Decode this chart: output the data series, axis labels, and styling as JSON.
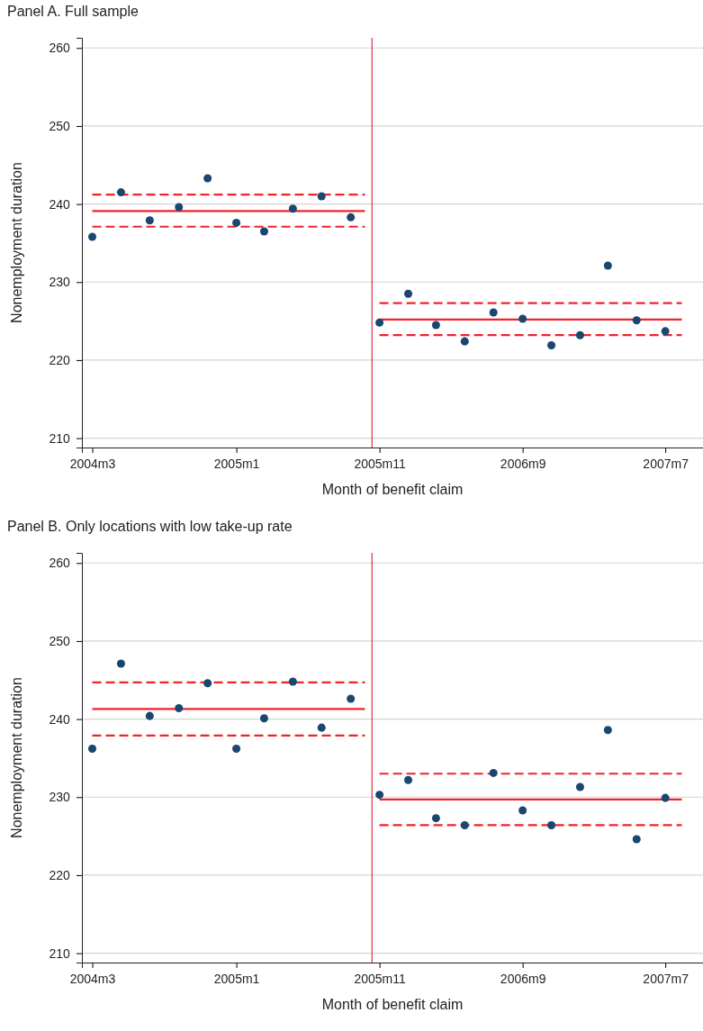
{
  "chart_data": [
    {
      "type": "scatter",
      "title": "Panel A. Full sample",
      "xlabel": "Month of benefit claim",
      "ylabel": "Nonemployment duration",
      "xlim": [
        "2004-02-08",
        "2007-09-19"
      ],
      "ylim": [
        208.8,
        261.3
      ],
      "xticks": [
        {
          "value": "2004-03",
          "label": "2004m3"
        },
        {
          "value": "2005-01",
          "label": "2005m1"
        },
        {
          "value": "2005-11",
          "label": "2005m11"
        },
        {
          "value": "2006-09",
          "label": "2006m9"
        },
        {
          "value": "2007-07",
          "label": "2007m7"
        }
      ],
      "yticks": [
        210,
        220,
        230,
        240,
        250,
        260
      ],
      "grid": "y",
      "ref_lines": [
        {
          "axis": "x",
          "value": "2005-10-16",
          "color": "#c8102e"
        }
      ],
      "series": [
        {
          "color": "#1a476f",
          "marker": "circle",
          "x": [
            "2004-03",
            "2004-05",
            "2004-07",
            "2004-09",
            "2004-11",
            "2005-01",
            "2005-03",
            "2005-05",
            "2005-07",
            "2005-09",
            "2005-11",
            "2006-01",
            "2006-03",
            "2006-05",
            "2006-07",
            "2006-09",
            "2006-11",
            "2007-01",
            "2007-03",
            "2007-05",
            "2007-07"
          ],
          "values": [
            235.8,
            241.5,
            237.9,
            239.6,
            243.3,
            237.6,
            236.5,
            239.4,
            241.0,
            238.3,
            224.8,
            228.5,
            224.5,
            222.4,
            226.1,
            225.3,
            221.9,
            223.2,
            232.1,
            225.1,
            223.7
          ]
        },
        {
          "type": "line",
          "color": "#f0232b",
          "line_style": "solid",
          "x": [
            "2004-03",
            "2005-10-01"
          ],
          "values": [
            239.1,
            239.1
          ]
        },
        {
          "type": "line",
          "color": "#f0232b",
          "line_style": "dashed",
          "x": [
            "2004-03",
            "2005-10-01"
          ],
          "values": [
            241.2,
            241.2
          ]
        },
        {
          "type": "line",
          "color": "#f0232b",
          "line_style": "dashed",
          "x": [
            "2004-03",
            "2005-10-01"
          ],
          "values": [
            237.1,
            237.1
          ]
        },
        {
          "type": "line",
          "color": "#f0232b",
          "line_style": "solid",
          "x": [
            "2005-11",
            "2007-08-05"
          ],
          "values": [
            225.2,
            225.2
          ]
        },
        {
          "type": "line",
          "color": "#f0232b",
          "line_style": "dashed",
          "x": [
            "2005-11",
            "2007-08-05"
          ],
          "values": [
            227.3,
            227.3
          ]
        },
        {
          "type": "line",
          "color": "#f0232b",
          "line_style": "dashed",
          "x": [
            "2005-11",
            "2007-08-05"
          ],
          "values": [
            223.2,
            223.2
          ]
        }
      ]
    },
    {
      "type": "scatter",
      "title": "Panel B. Only locations with low take-up rate",
      "xlabel": "Month of benefit claim",
      "ylabel": "Nonemployment duration",
      "xlim": [
        "2004-02-08",
        "2007-09-19"
      ],
      "ylim": [
        208.8,
        261.3
      ],
      "xticks": [
        {
          "value": "2004-03",
          "label": "2004m3"
        },
        {
          "value": "2005-01",
          "label": "2005m1"
        },
        {
          "value": "2005-11",
          "label": "2005m11"
        },
        {
          "value": "2006-09",
          "label": "2006m9"
        },
        {
          "value": "2007-07",
          "label": "2007m7"
        }
      ],
      "yticks": [
        210,
        220,
        230,
        240,
        250,
        260
      ],
      "grid": "y",
      "ref_lines": [
        {
          "axis": "x",
          "value": "2005-10-16",
          "color": "#c8102e"
        }
      ],
      "series": [
        {
          "color": "#1a476f",
          "marker": "circle",
          "x": [
            "2004-03",
            "2004-05",
            "2004-07",
            "2004-09",
            "2004-11",
            "2005-01",
            "2005-03",
            "2005-05",
            "2005-07",
            "2005-09",
            "2005-11",
            "2006-01",
            "2006-03",
            "2006-05",
            "2006-07",
            "2006-09",
            "2006-11",
            "2007-01",
            "2007-03",
            "2007-05",
            "2007-07"
          ],
          "values": [
            236.2,
            247.1,
            240.4,
            241.4,
            244.6,
            236.2,
            240.1,
            244.8,
            238.9,
            242.6,
            230.3,
            232.2,
            227.3,
            226.4,
            233.1,
            228.3,
            226.4,
            231.3,
            238.6,
            224.6,
            229.9
          ]
        },
        {
          "type": "line",
          "color": "#f0232b",
          "line_style": "solid",
          "x": [
            "2004-03",
            "2005-10-01"
          ],
          "values": [
            241.3,
            241.3
          ]
        },
        {
          "type": "line",
          "color": "#f0232b",
          "line_style": "dashed",
          "x": [
            "2004-03",
            "2005-10-01"
          ],
          "values": [
            244.7,
            244.7
          ]
        },
        {
          "type": "line",
          "color": "#f0232b",
          "line_style": "dashed",
          "x": [
            "2004-03",
            "2005-10-01"
          ],
          "values": [
            237.9,
            237.9
          ]
        },
        {
          "type": "line",
          "color": "#f0232b",
          "line_style": "solid",
          "x": [
            "2005-11",
            "2007-08-05"
          ],
          "values": [
            229.7,
            229.7
          ]
        },
        {
          "type": "line",
          "color": "#f0232b",
          "line_style": "dashed",
          "x": [
            "2005-11",
            "2007-08-05"
          ],
          "values": [
            233.0,
            233.0
          ]
        },
        {
          "type": "line",
          "color": "#f0232b",
          "line_style": "dashed",
          "x": [
            "2005-11",
            "2007-08-05"
          ],
          "values": [
            226.4,
            226.4
          ]
        }
      ]
    }
  ]
}
